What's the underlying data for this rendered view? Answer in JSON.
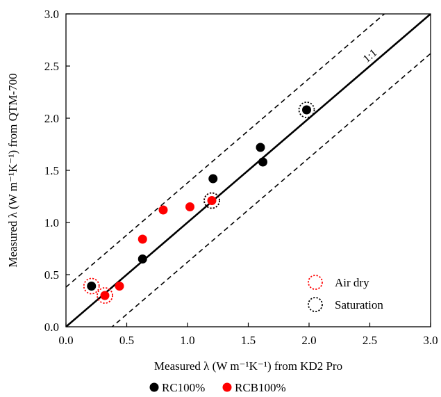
{
  "chart_data": {
    "type": "scatter",
    "xlabel": "Measured λ (W m⁻¹K⁻¹) from KD2 Pro",
    "ylabel": "Measured λ (W m⁻¹K⁻¹) from QTM-700",
    "xlim": [
      0,
      3
    ],
    "ylim": [
      0,
      3
    ],
    "xticks": [
      "0.0",
      "0.5",
      "1.0",
      "1.5",
      "2.0",
      "2.5",
      "3.0"
    ],
    "yticks": [
      "0.0",
      "0.5",
      "1.0",
      "1.5",
      "2.0",
      "2.5",
      "3.0"
    ],
    "grid": false,
    "reference_line_label": "1:1",
    "band_offset": 0.38,
    "series": [
      {
        "name": "RC100%",
        "color": "#000000",
        "points": [
          [
            0.21,
            0.39
          ],
          [
            0.63,
            0.65
          ],
          [
            1.21,
            1.42
          ],
          [
            1.6,
            1.72
          ],
          [
            1.62,
            1.58
          ],
          [
            1.98,
            2.08
          ]
        ]
      },
      {
        "name": "RCB100%",
        "color": "#ff0000",
        "points": [
          [
            0.32,
            0.3
          ],
          [
            0.44,
            0.39
          ],
          [
            0.63,
            0.84
          ],
          [
            0.8,
            1.12
          ],
          [
            1.02,
            1.15
          ],
          [
            1.2,
            1.21
          ]
        ]
      }
    ],
    "highlights": [
      {
        "name": "Air dry",
        "color": "#ff0000",
        "points": [
          [
            0.21,
            0.39
          ],
          [
            0.32,
            0.3
          ],
          [
            1.2,
            1.21
          ]
        ]
      },
      {
        "name": "Saturation",
        "color": "#000000",
        "points": [
          [
            1.2,
            1.21
          ],
          [
            1.98,
            2.08
          ]
        ]
      }
    ]
  }
}
